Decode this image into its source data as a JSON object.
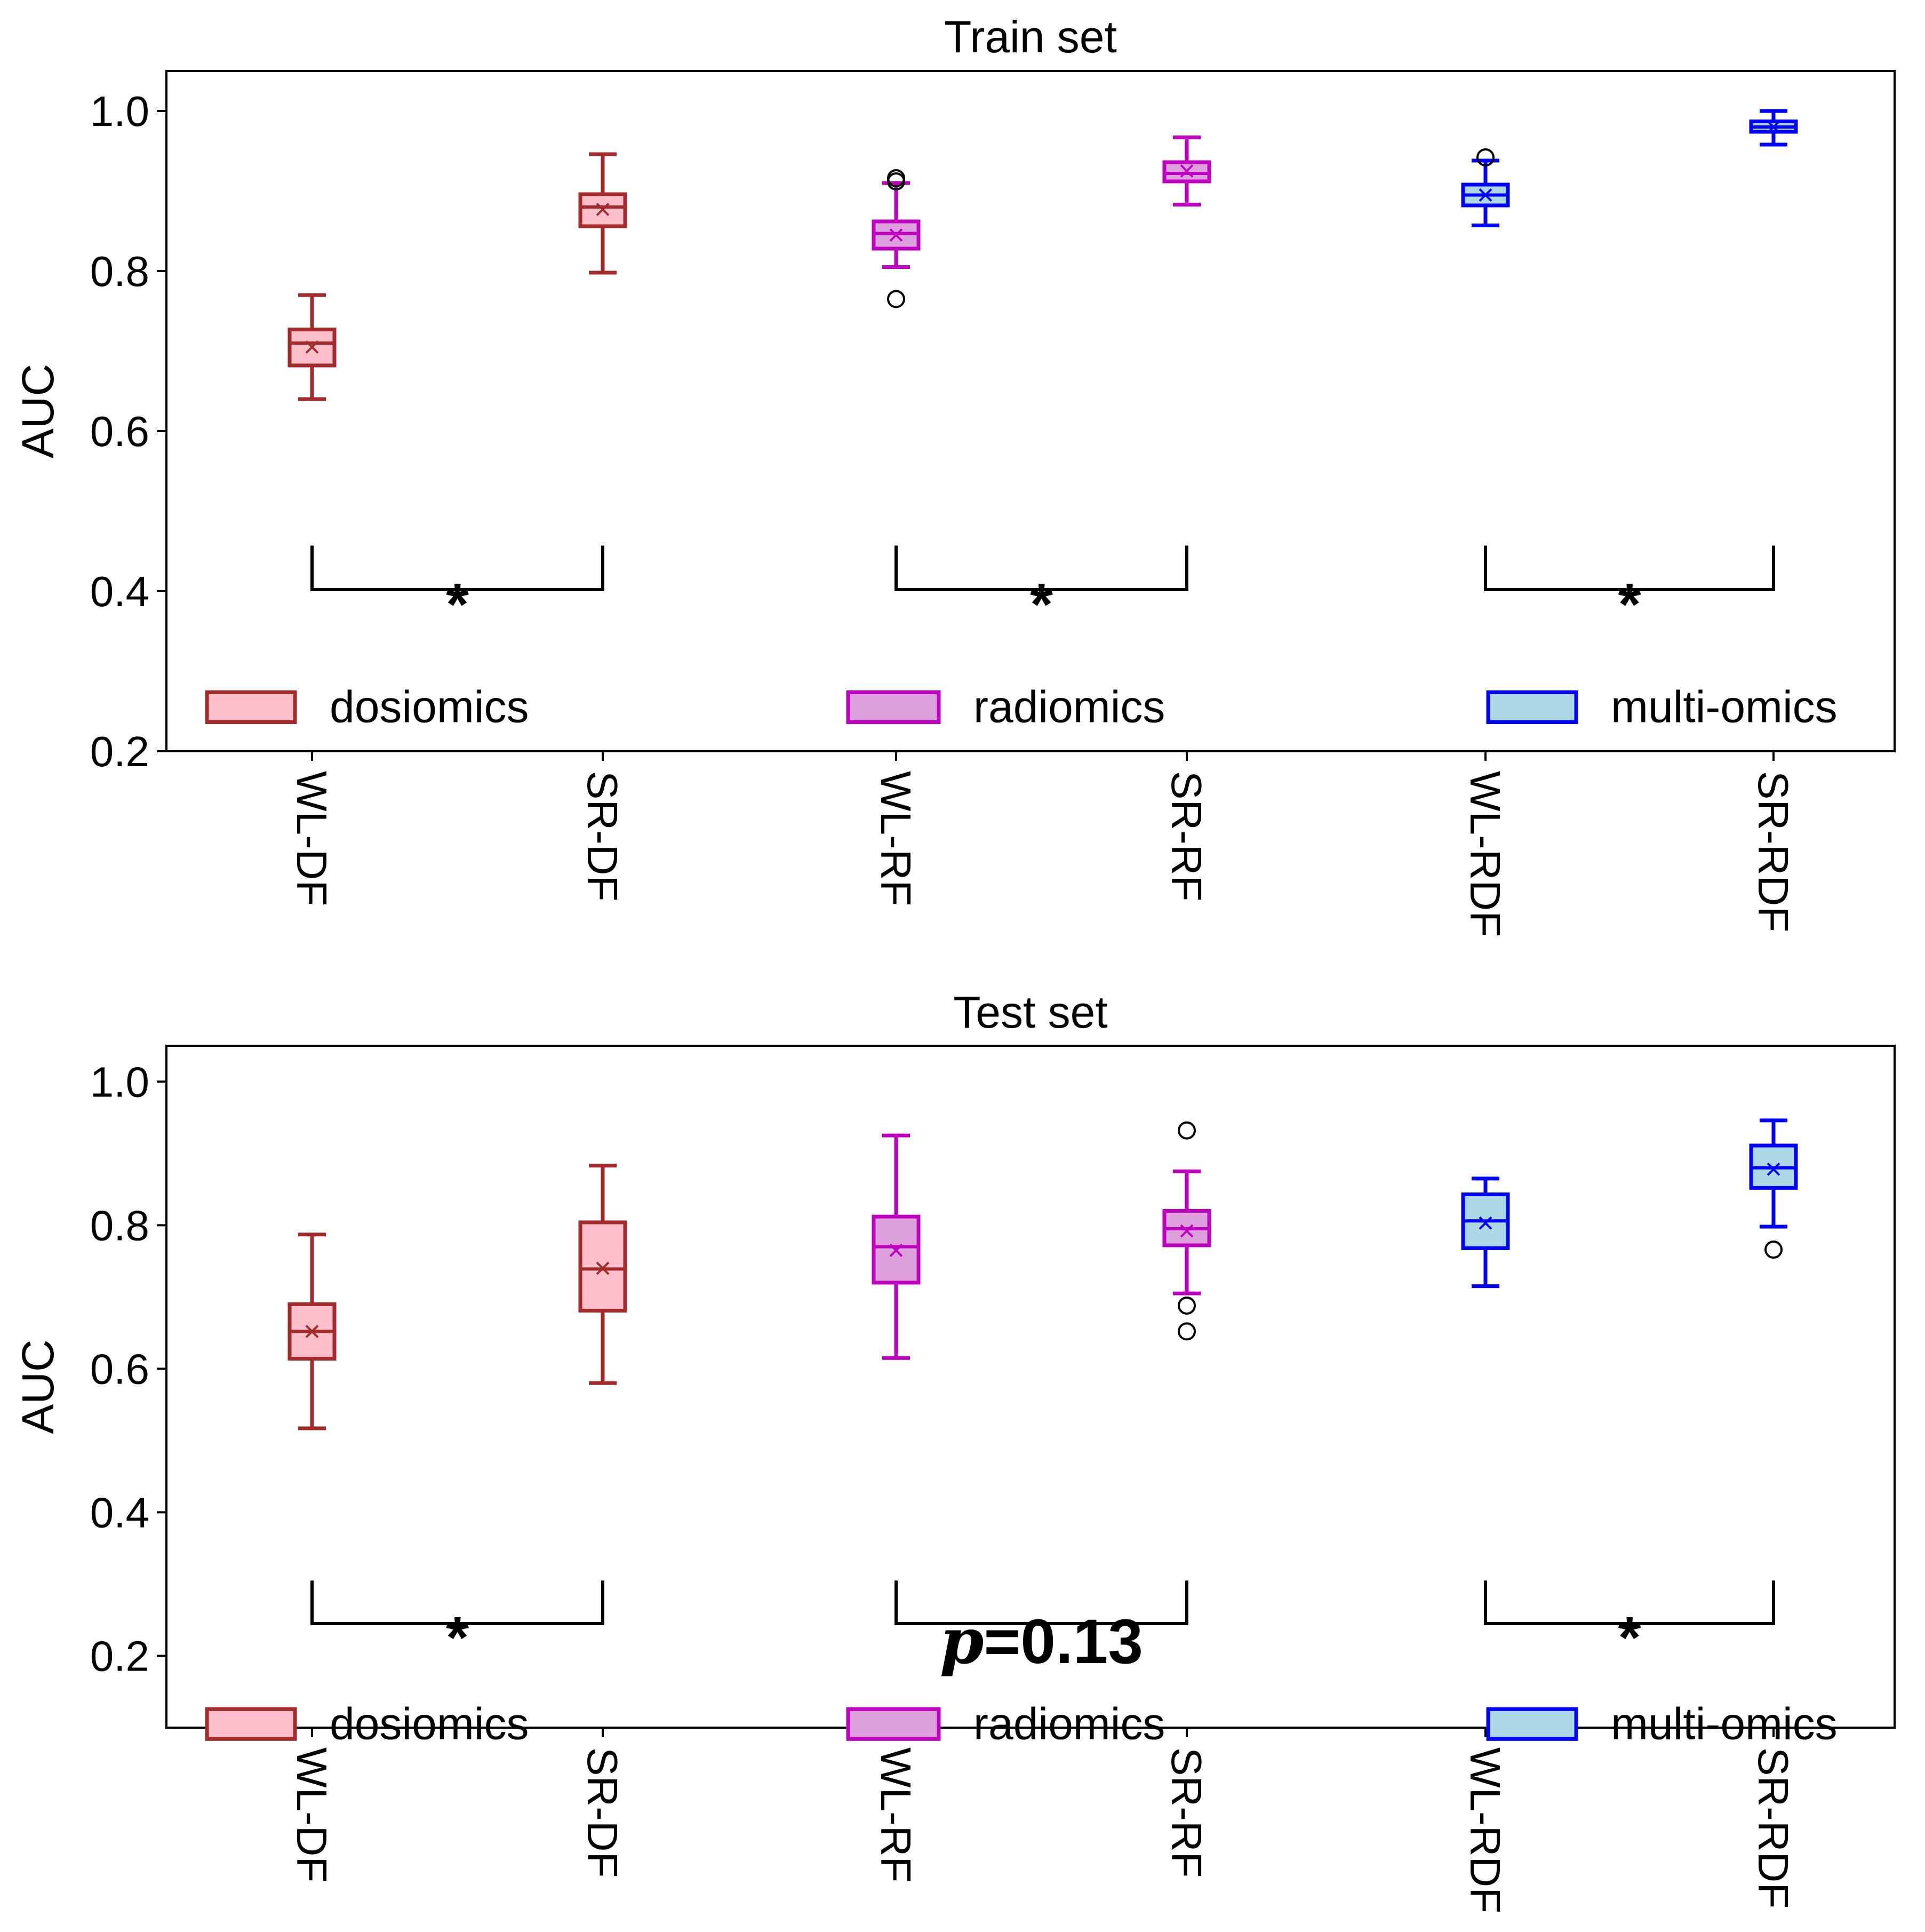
{
  "chart_data": [
    {
      "type": "boxplot",
      "title": "Train set",
      "xlabel": "",
      "ylabel": "AUC",
      "ylim": [
        0.2,
        1.05
      ],
      "yticks": [
        "0.2",
        "0.4",
        "0.6",
        "0.8",
        "1.0"
      ],
      "categories": [
        "WL-DF",
        "SR-DF",
        "WL-RF",
        "SR-RF",
        "WL-RDF",
        "SR-RDF"
      ],
      "groups": [
        "dosiomics",
        "dosiomics",
        "radiomics",
        "radiomics",
        "multi-omics",
        "multi-omics"
      ],
      "boxes": [
        {
          "whislo": 0.64,
          "q1": 0.682,
          "med": 0.71,
          "q3": 0.727,
          "whishi": 0.77,
          "mean": 0.705,
          "fliers": []
        },
        {
          "whislo": 0.798,
          "q1": 0.856,
          "med": 0.88,
          "q3": 0.896,
          "whishi": 0.946,
          "mean": 0.877,
          "fliers": []
        },
        {
          "whislo": 0.805,
          "q1": 0.828,
          "med": 0.847,
          "q3": 0.862,
          "whishi": 0.91,
          "mean": 0.845,
          "fliers": [
            0.765,
            0.912,
            0.916
          ]
        },
        {
          "whislo": 0.883,
          "q1": 0.912,
          "med": 0.922,
          "q3": 0.936,
          "whishi": 0.967,
          "mean": 0.925,
          "fliers": []
        },
        {
          "whislo": 0.857,
          "q1": 0.882,
          "med": 0.895,
          "q3": 0.908,
          "whishi": 0.938,
          "mean": 0.895,
          "fliers": [
            0.942
          ]
        },
        {
          "whislo": 0.958,
          "q1": 0.974,
          "med": 0.98,
          "q3": 0.987,
          "whishi": 1.0,
          "mean": 0.98,
          "fliers": []
        }
      ],
      "comparisons": [
        {
          "from": "WL-DF",
          "to": "SR-DF",
          "label": "*"
        },
        {
          "from": "WL-RF",
          "to": "SR-RF",
          "label": "*"
        },
        {
          "from": "WL-RDF",
          "to": "SR-RDF",
          "label": "*"
        }
      ],
      "legend": {
        "position": "bottom",
        "entries": [
          "dosiomics",
          "radiomics",
          "multi-omics"
        ]
      }
    },
    {
      "type": "boxplot",
      "title": "Test set",
      "xlabel": "",
      "ylabel": "AUC",
      "ylim": [
        0.1,
        1.05
      ],
      "yticks": [
        "0.2",
        "0.4",
        "0.6",
        "0.8",
        "1.0"
      ],
      "categories": [
        "WL-DF",
        "SR-DF",
        "WL-RF",
        "SR-RF",
        "WL-RDF",
        "SR-RDF"
      ],
      "groups": [
        "dosiomics",
        "dosiomics",
        "radiomics",
        "radiomics",
        "multi-omics",
        "multi-omics"
      ],
      "boxes": [
        {
          "whislo": 0.517,
          "q1": 0.614,
          "med": 0.652,
          "q3": 0.69,
          "whishi": 0.787,
          "mean": 0.652,
          "fliers": []
        },
        {
          "whislo": 0.58,
          "q1": 0.681,
          "med": 0.739,
          "q3": 0.804,
          "whishi": 0.883,
          "mean": 0.74,
          "fliers": []
        },
        {
          "whislo": 0.615,
          "q1": 0.72,
          "med": 0.77,
          "q3": 0.812,
          "whishi": 0.925,
          "mean": 0.765,
          "fliers": []
        },
        {
          "whislo": 0.705,
          "q1": 0.772,
          "med": 0.795,
          "q3": 0.82,
          "whishi": 0.875,
          "mean": 0.792,
          "fliers": [
            0.932,
            0.688,
            0.652
          ]
        },
        {
          "whislo": 0.715,
          "q1": 0.768,
          "med": 0.806,
          "q3": 0.843,
          "whishi": 0.865,
          "mean": 0.803,
          "fliers": []
        },
        {
          "whislo": 0.798,
          "q1": 0.852,
          "med": 0.88,
          "q3": 0.911,
          "whishi": 0.946,
          "mean": 0.878,
          "fliers": [
            0.766
          ]
        }
      ],
      "comparisons": [
        {
          "from": "WL-DF",
          "to": "SR-DF",
          "label": "*"
        },
        {
          "from": "WL-RF",
          "to": "SR-RF",
          "p_symbol": "p",
          "p_value": "=0.13"
        },
        {
          "from": "WL-RDF",
          "to": "SR-RDF",
          "label": "*"
        }
      ],
      "legend": {
        "position": "bottom",
        "entries": [
          "dosiomics",
          "radiomics",
          "multi-omics"
        ]
      }
    }
  ],
  "colors": {
    "dosiomics": {
      "edge": "#a52a2a",
      "face": "#ffc0cb"
    },
    "radiomics": {
      "edge": "#c000c0",
      "face": "#dda0dd"
    },
    "multi-omics": {
      "edge": "#0000ff",
      "face": "#add8e6"
    },
    "flier": "#000000",
    "axes": "#000000"
  }
}
